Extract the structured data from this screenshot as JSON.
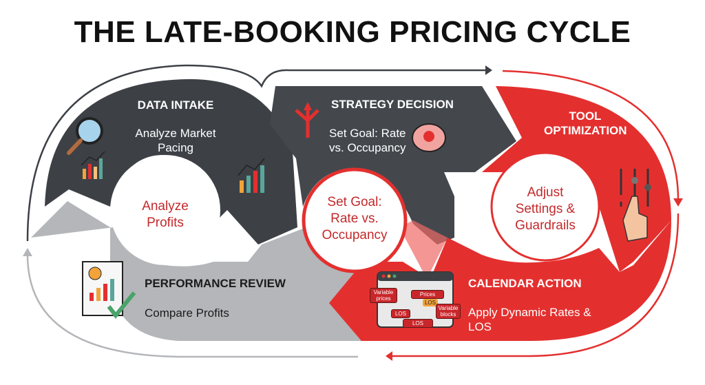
{
  "title": "THE LATE-BOOKING PRICING CYCLE",
  "colors": {
    "dark": "#3d4146",
    "red": "#e3302f",
    "gray": "#b4b6b9",
    "accent_text": "#c3292b"
  },
  "stages": {
    "data_intake": {
      "heading": "DATA INTAKE",
      "text": "Analyze Market Pacing",
      "circle": "Analyze Profits",
      "icons": [
        "magnifier-icon",
        "bar-chart-icon"
      ]
    },
    "strategy_decision": {
      "heading": "STRATEGY DECISION",
      "text": "Set Goal: Rate vs. Occupancy",
      "circle": "Set Goal: Rate vs. Occupancy",
      "icons": [
        "split-arrows-icon",
        "brain-lightbulb-icon"
      ]
    },
    "tool_optimization": {
      "heading": "TOOL OPTIMIZATION",
      "circle": "Adjust Settings & Guardrails",
      "icons": [
        "sliders-hand-icon"
      ]
    },
    "calendar_action": {
      "heading": "CALENDAR ACTION",
      "text": "Apply Dynamic Rates & LOS",
      "icons": [
        "calendar-icon"
      ],
      "calendar_labels": {
        "variable_prices": "Variable prices",
        "prices": "Prices",
        "los": "LOS",
        "variable_blocks": "Variable blocks"
      }
    },
    "performance_review": {
      "heading": "PERFORMANCE REVIEW",
      "text": "Compare Profits",
      "icons": [
        "report-check-icon"
      ]
    }
  }
}
